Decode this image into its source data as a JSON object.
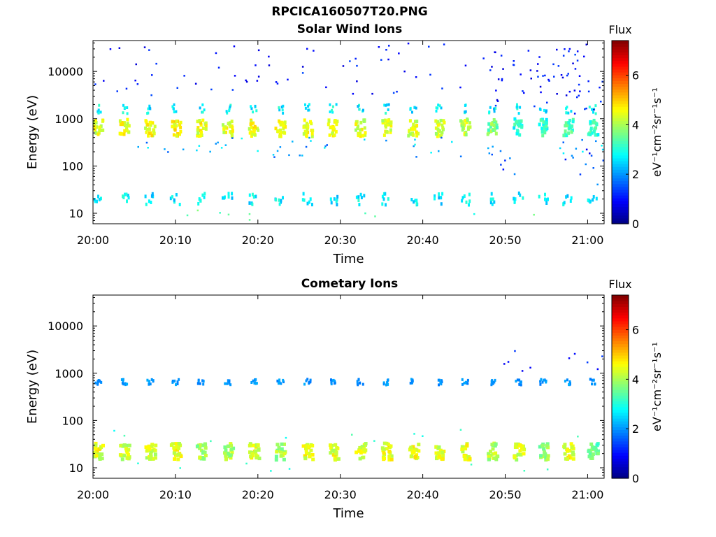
{
  "figure_title": "RPCICA160507T20.PNG",
  "chart_data": [
    {
      "type": "heatmap",
      "title": "Solar Wind Ions",
      "xlabel": "Time",
      "ylabel": "Energy (eV)",
      "x_ticks": [
        "20:00",
        "20:10",
        "20:20",
        "20:30",
        "20:40",
        "20:50",
        "21:00"
      ],
      "x_range": [
        "20:00",
        "21:02"
      ],
      "y_scale": "log",
      "y_ticks": [
        "10",
        "100",
        "1000",
        "10000"
      ],
      "y_range": [
        6,
        45000
      ],
      "colorbar": {
        "title": "Flux",
        "label": "eV⁻¹cm⁻²sr⁻¹s⁻¹",
        "ticks": [
          "0",
          "2",
          "4",
          "6"
        ],
        "range": [
          0,
          7.4
        ]
      },
      "bursts": [
        {
          "t": 0.5,
          "e": 650,
          "flux": 4.9
        },
        {
          "t": 3.7,
          "e": 650,
          "flux": 5.0
        },
        {
          "t": 6.8,
          "e": 630,
          "flux": 5.0
        },
        {
          "t": 9.9,
          "e": 620,
          "flux": 5.1
        },
        {
          "t": 13.0,
          "e": 630,
          "flux": 5.0
        },
        {
          "t": 16.2,
          "e": 620,
          "flux": 5.0
        },
        {
          "t": 19.4,
          "e": 640,
          "flux": 5.1
        },
        {
          "t": 22.6,
          "e": 630,
          "flux": 5.0
        },
        {
          "t": 25.9,
          "e": 630,
          "flux": 5.0
        },
        {
          "t": 29.0,
          "e": 640,
          "flux": 5.0
        },
        {
          "t": 32.3,
          "e": 630,
          "flux": 4.9
        },
        {
          "t": 35.5,
          "e": 630,
          "flux": 4.9
        },
        {
          "t": 38.7,
          "e": 630,
          "flux": 4.9
        },
        {
          "t": 41.9,
          "e": 630,
          "flux": 4.8
        },
        {
          "t": 45.0,
          "e": 650,
          "flux": 4.7
        },
        {
          "t": 48.3,
          "e": 660,
          "flux": 4.2
        },
        {
          "t": 51.5,
          "e": 660,
          "flux": 3.6
        },
        {
          "t": 54.5,
          "e": 650,
          "flux": 3.6
        },
        {
          "t": 57.5,
          "e": 650,
          "flux": 3.8
        },
        {
          "t": 60.5,
          "e": 640,
          "flux": 3.7
        }
      ],
      "low_band": {
        "e": 20,
        "flux": 3.2
      }
    },
    {
      "type": "heatmap",
      "title": "Cometary Ions",
      "xlabel": "Time",
      "ylabel": "Energy (eV)",
      "x_ticks": [
        "20:00",
        "20:10",
        "20:20",
        "20:30",
        "20:40",
        "20:50",
        "21:00"
      ],
      "x_range": [
        "20:00",
        "21:02"
      ],
      "y_scale": "log",
      "y_ticks": [
        "10",
        "100",
        "1000",
        "10000"
      ],
      "y_range": [
        6,
        45000
      ],
      "colorbar": {
        "title": "Flux",
        "label": "eV⁻¹cm⁻²sr⁻¹s⁻¹",
        "ticks": [
          "0",
          "2",
          "4",
          "6"
        ],
        "range": [
          0,
          7.4
        ]
      },
      "bursts": [
        {
          "t": 0.5,
          "e": 22,
          "flux": 4.9
        },
        {
          "t": 3.7,
          "e": 22,
          "flux": 4.7
        },
        {
          "t": 6.8,
          "e": 22,
          "flux": 4.8
        },
        {
          "t": 9.9,
          "e": 22,
          "flux": 5.0
        },
        {
          "t": 13.0,
          "e": 22,
          "flux": 4.5
        },
        {
          "t": 16.2,
          "e": 22,
          "flux": 4.6
        },
        {
          "t": 19.4,
          "e": 22,
          "flux": 4.9
        },
        {
          "t": 22.6,
          "e": 22,
          "flux": 4.5
        },
        {
          "t": 25.9,
          "e": 22,
          "flux": 5.0
        },
        {
          "t": 29.0,
          "e": 22,
          "flux": 4.9
        },
        {
          "t": 32.3,
          "e": 22,
          "flux": 4.8
        },
        {
          "t": 35.5,
          "e": 22,
          "flux": 5.1
        },
        {
          "t": 38.7,
          "e": 22,
          "flux": 5.0
        },
        {
          "t": 41.9,
          "e": 22,
          "flux": 4.9
        },
        {
          "t": 45.0,
          "e": 22,
          "flux": 5.0
        },
        {
          "t": 48.3,
          "e": 22,
          "flux": 4.6
        },
        {
          "t": 51.5,
          "e": 22,
          "flux": 4.8
        },
        {
          "t": 54.5,
          "e": 22,
          "flux": 4.3
        },
        {
          "t": 57.5,
          "e": 22,
          "flux": 5.0
        },
        {
          "t": 60.5,
          "e": 22,
          "flux": 4.0
        }
      ],
      "high_band": {
        "e": 650,
        "flux": 2.2
      }
    }
  ]
}
